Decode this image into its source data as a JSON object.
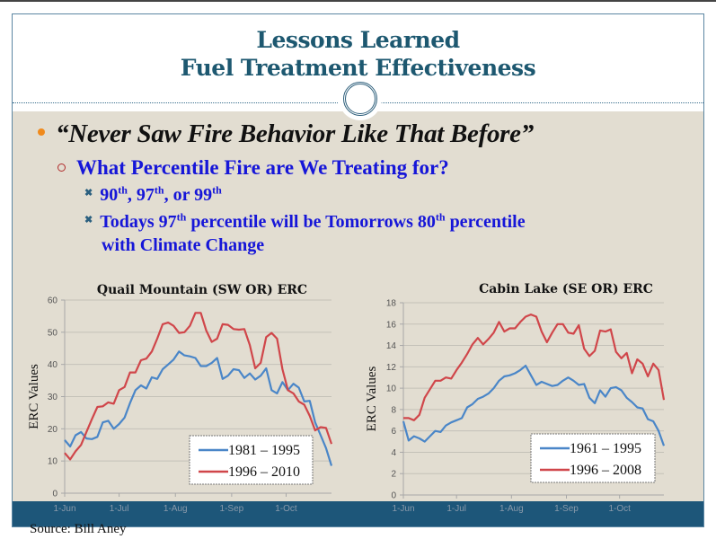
{
  "slide": {
    "title_line1": "Lessons Learned",
    "title_line2": "Fuel Treatment Effectiveness",
    "bullet1": "“Never Saw Fire Behavior Like That Before”",
    "bullet2": "What Percentile  Fire are We Treating for?",
    "bullet3": {
      "a": "90",
      "a_sup": "th",
      "b": ",  97",
      "b_sup": "th",
      "c": ",  or 99",
      "c_sup": "th"
    },
    "bullet4": {
      "a": "Todays 97",
      "a_sup": "th",
      "b": " percentile will be Tomorrows 80",
      "b_sup": "th",
      "c": " percentile",
      "d": "with Climate Change"
    },
    "source": "Source: Bill Aney"
  },
  "colors": {
    "blue": "#4a86c8",
    "red": "#d0464a",
    "band": "#1d5679",
    "title": "#1d5870"
  },
  "chart_data": [
    {
      "type": "line",
      "title": "Quail Mountain (SW OR) ERC",
      "ylabel": "ERC Values",
      "xlabel": "",
      "ylim": [
        0,
        60
      ],
      "yticks": [
        0,
        10,
        20,
        30,
        40,
        50,
        60
      ],
      "x_start": "1-Jun",
      "step_days": 3,
      "xticks": [
        {
          "label": "1-Jun",
          "day": 0
        },
        {
          "label": "1-Jul",
          "day": 30
        },
        {
          "label": "1-Aug",
          "day": 61
        },
        {
          "label": "1-Sep",
          "day": 92
        },
        {
          "label": "1-Oct",
          "day": 122
        }
      ],
      "grid": true,
      "legend": "bottom-right",
      "series": [
        {
          "name": "1981 – 1995",
          "color": "#4a86c8",
          "values": [
            16.5,
            14.5,
            18,
            19,
            17,
            16.8,
            17.5,
            22,
            22.5,
            20,
            21.5,
            23.5,
            28,
            32,
            33.5,
            32.5,
            36,
            35.5,
            38.5,
            40,
            41.5,
            44,
            42.8,
            42.5,
            42,
            39.5,
            39.5,
            40.5,
            42,
            35.5,
            36.5,
            38.5,
            38.2,
            35.8,
            37.2,
            35.3,
            36.5,
            38.8,
            32,
            31,
            34.5,
            32,
            34,
            32.8,
            28.5,
            28.7,
            22,
            18,
            14,
            8.5
          ]
        },
        {
          "name": "1996 – 2010",
          "color": "#d0464a",
          "values": [
            12.5,
            10.5,
            13,
            15,
            19,
            23,
            26.8,
            27,
            28.2,
            27.8,
            32,
            33,
            37.5,
            37.5,
            41.3,
            41.8,
            44,
            48,
            52.5,
            53,
            52,
            49.8,
            50,
            52,
            56,
            56,
            50.5,
            47,
            48,
            52.5,
            52.3,
            51,
            50.8,
            51,
            46,
            38.8,
            40.5,
            48.5,
            49.8,
            48,
            38.5,
            32,
            31,
            28.5,
            27.5,
            24,
            19.5,
            20.5,
            20.3,
            15.3
          ]
        }
      ]
    },
    {
      "type": "line",
      "title": "Cabin Lake (SE OR) ERC",
      "ylabel": "ERC Values",
      "xlabel": "",
      "ylim": [
        0,
        18
      ],
      "yticks": [
        0,
        2,
        4,
        6,
        8,
        10,
        12,
        14,
        16,
        18
      ],
      "x_start": "1-Jun",
      "step_days": 3,
      "xticks": [
        {
          "label": "1-Jun",
          "day": 0
        },
        {
          "label": "1-Jul",
          "day": 30
        },
        {
          "label": "1-Aug",
          "day": 61
        },
        {
          "label": "1-Sep",
          "day": 92
        },
        {
          "label": "1-Oct",
          "day": 122
        }
      ],
      "grid": true,
      "legend": "bottom-right",
      "series": [
        {
          "name": "1961 – 1995",
          "color": "#4a86c8",
          "values": [
            6.9,
            5.1,
            5.5,
            5.3,
            5.0,
            5.5,
            6.0,
            5.9,
            6.5,
            6.8,
            7.0,
            7.2,
            8.2,
            8.5,
            9.0,
            9.2,
            9.5,
            10.0,
            10.7,
            11.1,
            11.2,
            11.4,
            11.7,
            12.1,
            11.2,
            10.3,
            10.6,
            10.4,
            10.2,
            10.3,
            10.7,
            11.0,
            10.7,
            10.3,
            10.4,
            9.1,
            8.6,
            9.8,
            9.2,
            10.0,
            10.1,
            9.8,
            9.1,
            8.7,
            8.2,
            8.1,
            7.1,
            6.9,
            6.0,
            4.6
          ]
        },
        {
          "name": "1996 – 2008",
          "color": "#d0464a",
          "values": [
            7.2,
            7.2,
            7.0,
            7.5,
            9.1,
            9.9,
            10.7,
            10.7,
            11.0,
            10.9,
            11.7,
            12.4,
            13.2,
            14.1,
            14.7,
            14.1,
            14.6,
            15.2,
            16.2,
            15.3,
            15.6,
            15.6,
            16.2,
            16.7,
            16.9,
            16.7,
            15.3,
            14.3,
            15.2,
            16.0,
            16.0,
            15.2,
            15.1,
            15.9,
            13.7,
            13.0,
            13.5,
            15.4,
            15.3,
            15.5,
            13.4,
            12.8,
            13.3,
            11.4,
            12.7,
            12.3,
            11.1,
            12.3,
            11.7,
            8.9
          ]
        }
      ]
    }
  ]
}
